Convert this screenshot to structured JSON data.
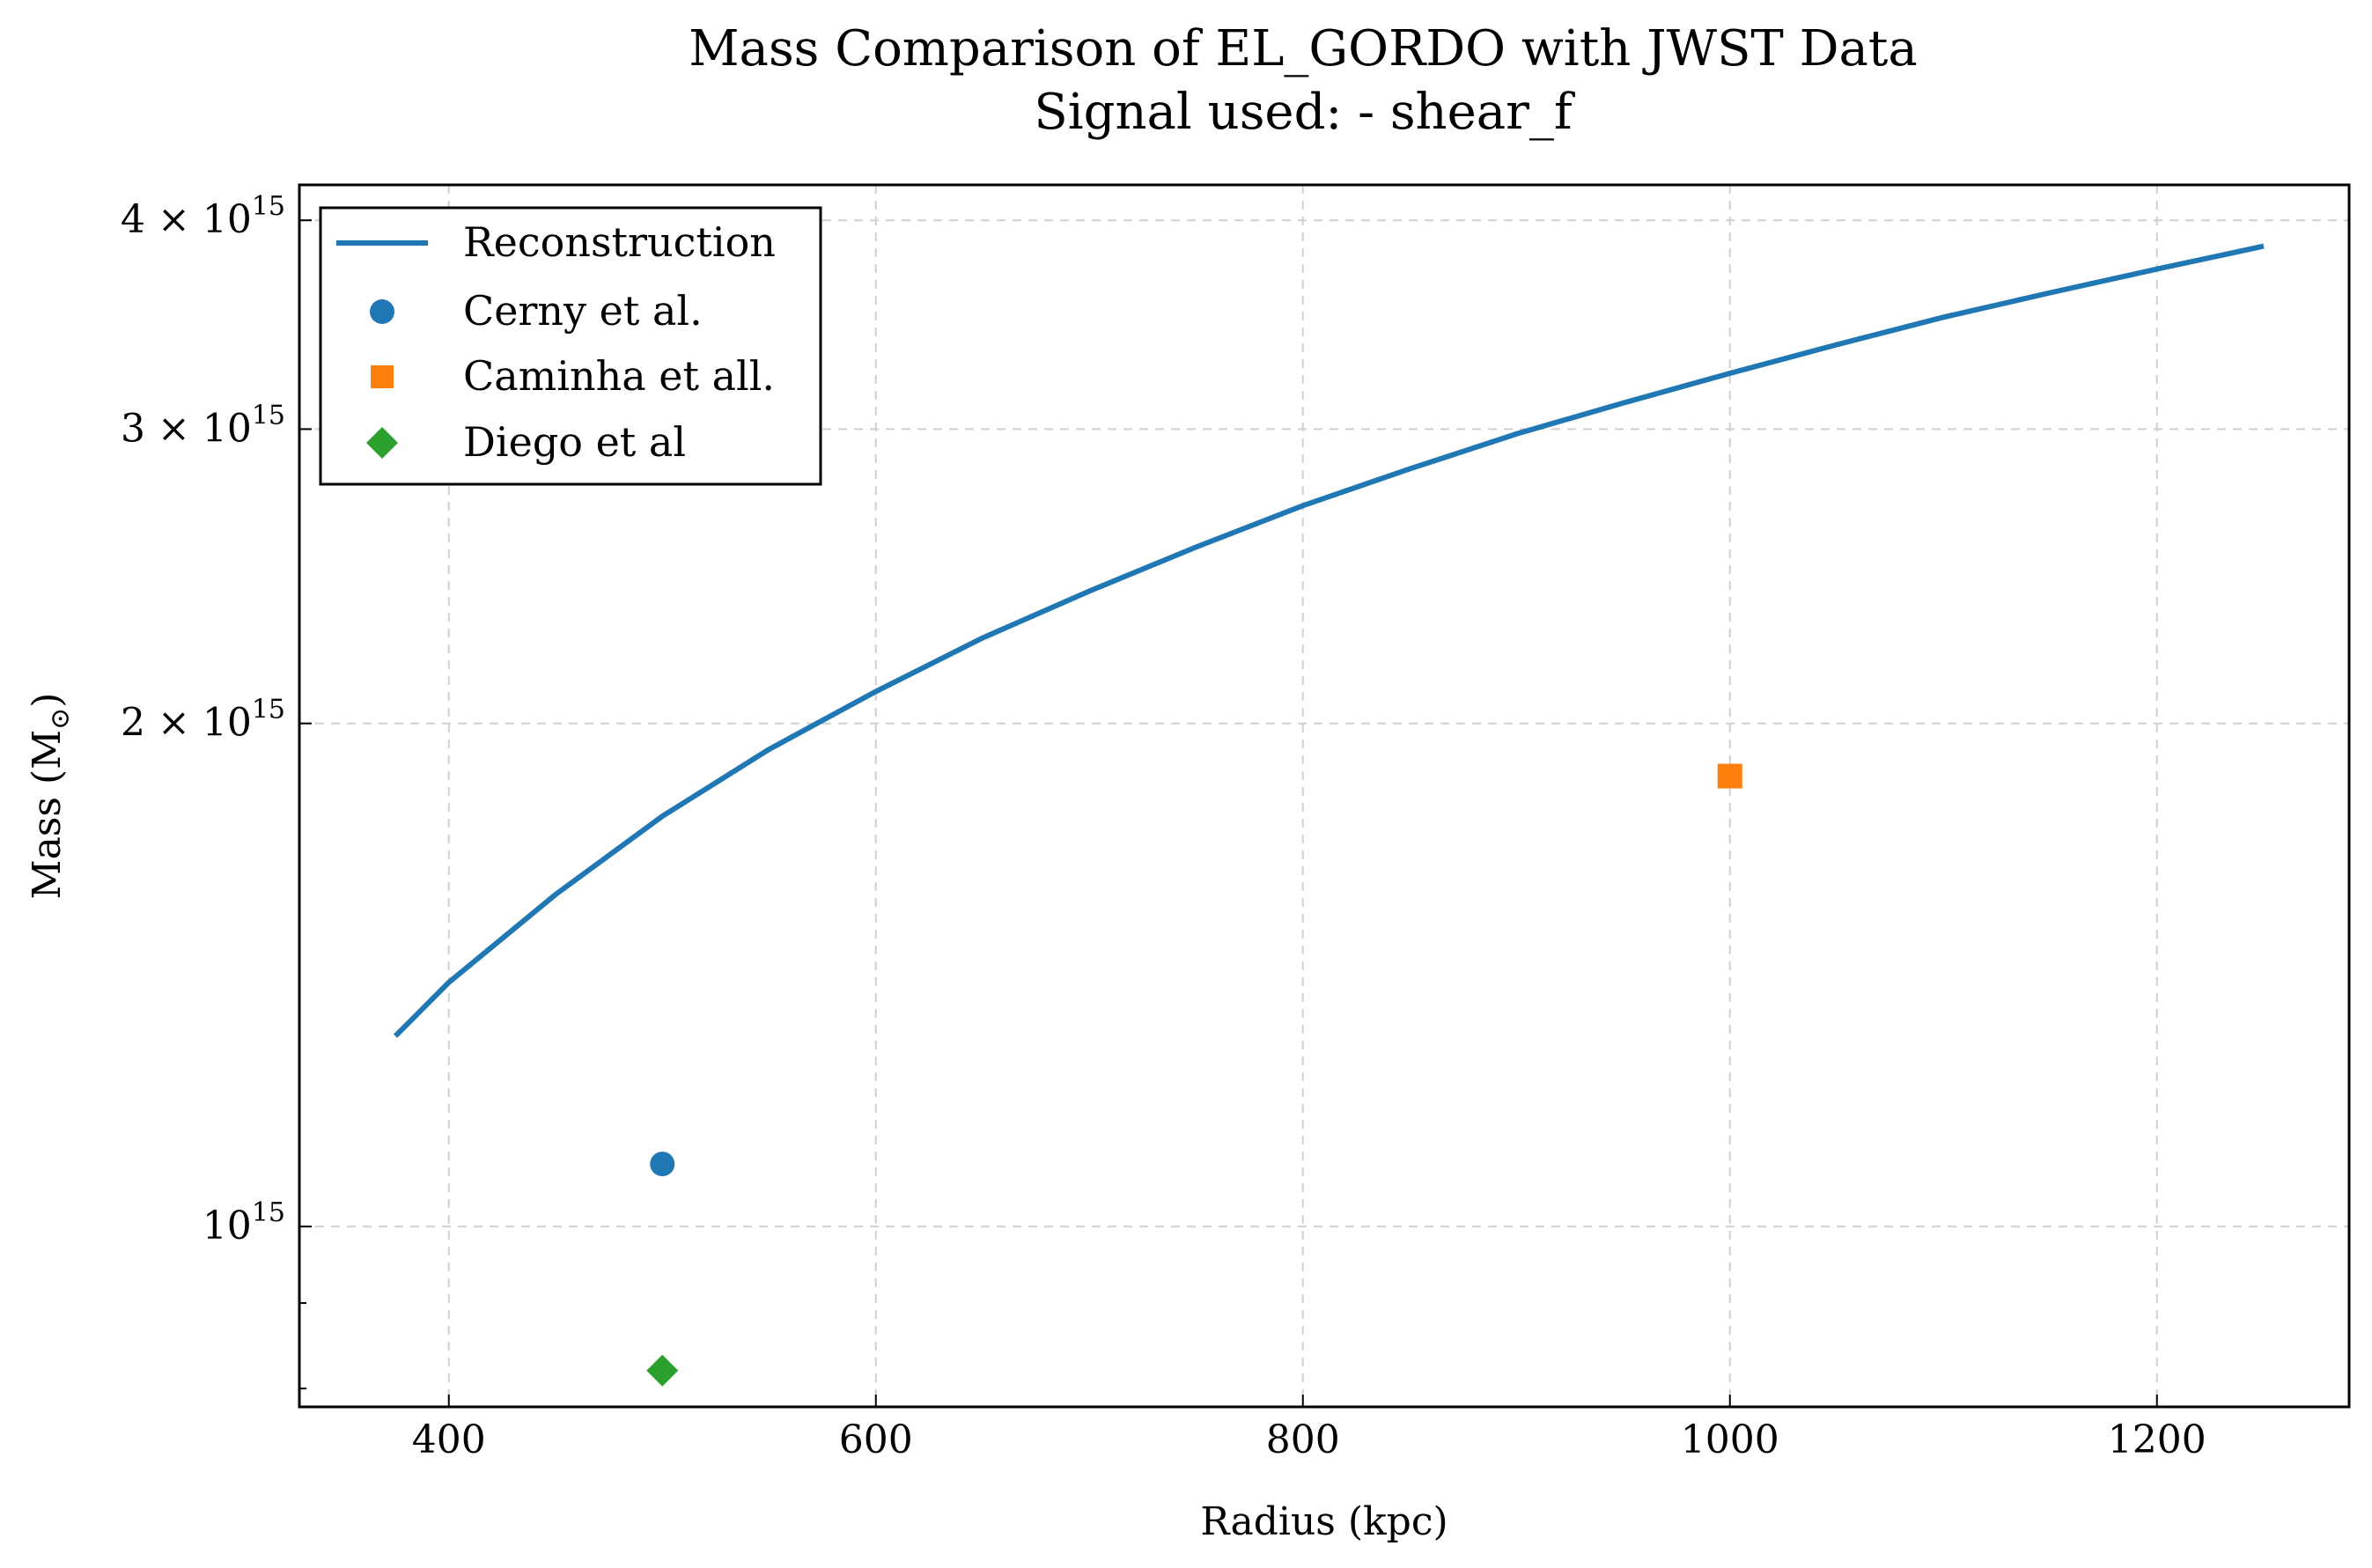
{
  "chart_data": {
    "type": "line",
    "title": "Mass Comparison of EL_GORDO with JWST Data",
    "subtitle": "Signal used: - shear_f",
    "xlabel": "Radius (kpc)",
    "ylabel": "Mass (M",
    "ylabel_sub": "⊙",
    "ylabel_close": ")",
    "xlim": [
      330,
      1290
    ],
    "ylim": [
      780000000000000.0,
      4200000000000000.0
    ],
    "yscale": "log",
    "grid": true,
    "legend_position": "upper-left",
    "x_ticks": [
      {
        "value": 400,
        "label": "400"
      },
      {
        "value": 600,
        "label": "600"
      },
      {
        "value": 800,
        "label": "800"
      },
      {
        "value": 1000,
        "label": "1000"
      },
      {
        "value": 1200,
        "label": "1200"
      }
    ],
    "y_ticks": [
      {
        "value": 1000000000000000.0,
        "base": "10",
        "exp": "15"
      },
      {
        "value": 2000000000000000.0,
        "base": "2 × 10",
        "exp": "15"
      },
      {
        "value": 3000000000000000.0,
        "base": "3 × 10",
        "exp": "15"
      },
      {
        "value": 4000000000000000.0,
        "base": "4 × 10",
        "exp": "15"
      }
    ],
    "y_minor_ticks": [
      800000000000000.0,
      900000000000000.0
    ],
    "series": [
      {
        "name": "Reconstruction",
        "kind": "line",
        "color": "#1f77b4",
        "x": [
          375,
          400,
          450,
          500,
          550,
          600,
          650,
          700,
          750,
          800,
          850,
          900,
          950,
          1000,
          1050,
          1100,
          1150,
          1200,
          1250
        ],
        "y": [
          1300000000000000.0,
          1400000000000000.0,
          1580000000000000.0,
          1760000000000000.0,
          1930000000000000.0,
          2090000000000000.0,
          2250000000000000.0,
          2400000000000000.0,
          2550000000000000.0,
          2700000000000000.0,
          2840000000000000.0,
          2980000000000000.0,
          3110000000000000.0,
          3240000000000000.0,
          3370000000000000.0,
          3500000000000000.0,
          3620000000000000.0,
          3740000000000000.0,
          3860000000000000.0
        ]
      },
      {
        "name": "Cerny et al.",
        "kind": "scatter",
        "marker": "circle",
        "color": "#1f77b4",
        "x": [
          500
        ],
        "y": [
          1090000000000000.0
        ]
      },
      {
        "name": "Caminha et all.",
        "kind": "scatter",
        "marker": "square",
        "color": "#ff7f0e",
        "x": [
          1000
        ],
        "y": [
          1860000000000000.0
        ]
      },
      {
        "name": "Diego et al",
        "kind": "scatter",
        "marker": "diamond",
        "color": "#2ca02c",
        "x": [
          500
        ],
        "y": [
          820000000000000.0
        ]
      }
    ]
  }
}
